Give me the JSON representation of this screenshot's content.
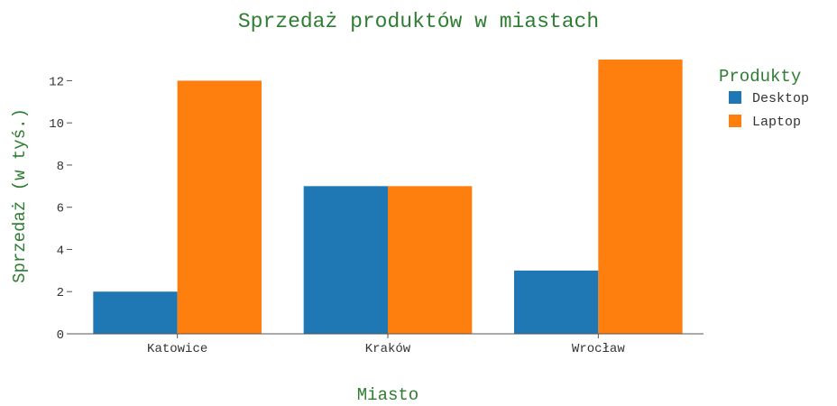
{
  "chart_data": {
    "type": "bar",
    "barmode": "grouped",
    "title": "Sprzedaż produktów w miastach",
    "xlabel": "Miasto",
    "ylabel": "Sprzedaż (w tyś.)",
    "categories": [
      "Katowice",
      "Kraków",
      "Wrocław"
    ],
    "series": [
      {
        "name": "Desktop",
        "values": [
          2,
          7,
          3
        ],
        "color": "#1f77b4"
      },
      {
        "name": "Laptop",
        "values": [
          12,
          7,
          13
        ],
        "color": "#ff7f0e"
      }
    ],
    "ylim": [
      0,
      13.6
    ],
    "yticks": [
      0,
      2,
      4,
      6,
      8,
      10,
      12
    ],
    "grid": false,
    "legend": {
      "title": "Produkty",
      "placement": "top-right"
    },
    "text_color": "#2e7d32",
    "tick_color": "#333333"
  }
}
